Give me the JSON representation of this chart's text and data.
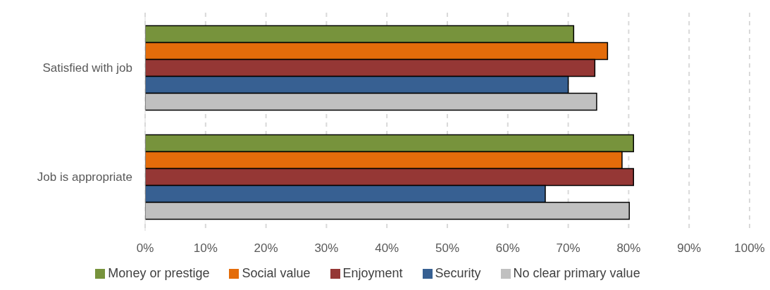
{
  "chart_data": {
    "type": "bar",
    "orientation": "horizontal",
    "categories": [
      "Satisfied with job",
      "Job is appropriate"
    ],
    "series": [
      {
        "name": "Money or prestige",
        "color": "#77933c",
        "values": [
          70.9,
          80.8
        ]
      },
      {
        "name": "Social value",
        "color": "#e46c0a",
        "values": [
          76.5,
          78.9
        ]
      },
      {
        "name": "Enjoyment",
        "color": "#953735",
        "values": [
          74.4,
          80.8
        ]
      },
      {
        "name": "Security",
        "color": "#376092",
        "values": [
          70.0,
          66.2
        ]
      },
      {
        "name": "No clear primary value",
        "color": "#c0c0c0",
        "values": [
          74.7,
          80.1
        ]
      }
    ],
    "xlim": [
      0,
      100
    ],
    "xticks": [
      {
        "value": 0,
        "label": "0%"
      },
      {
        "value": 10,
        "label": "10%"
      },
      {
        "value": 20,
        "label": "20%"
      },
      {
        "value": 30,
        "label": "30%"
      },
      {
        "value": 40,
        "label": "40%"
      },
      {
        "value": 50,
        "label": "50%"
      },
      {
        "value": 60,
        "label": "60%"
      },
      {
        "value": 70,
        "label": "70%"
      },
      {
        "value": 80,
        "label": "80%"
      },
      {
        "value": 90,
        "label": "90%"
      },
      {
        "value": 100,
        "label": "100%"
      }
    ],
    "grid": "x",
    "legend": "bottom"
  }
}
